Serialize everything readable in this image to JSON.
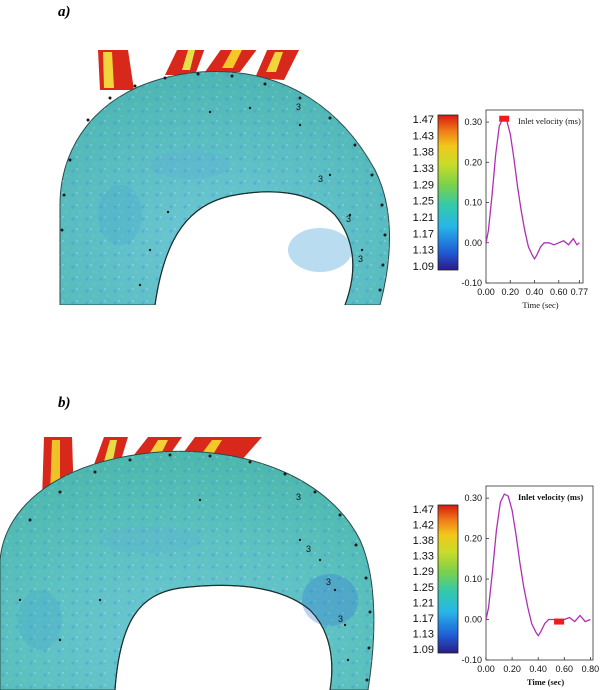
{
  "panels": [
    {
      "letter": "a)",
      "colorbar_labels": [
        "1.47",
        "1.43",
        "1.38",
        "1.33",
        "1.29",
        "1.25",
        "1.21",
        "1.17",
        "1.13",
        "1.09"
      ],
      "contour_label": "3",
      "chart": {
        "title": "Inlet velocity (ms)",
        "xlabel": "Time (sec)",
        "yticks": [
          "0.30",
          "0.20",
          "0.10",
          "0.00",
          "-0.10"
        ],
        "xticks": [
          "0.00",
          "0.20",
          "0.40",
          "0.60",
          "0.77"
        ],
        "marker_time": 0.15,
        "title_bold": false
      }
    },
    {
      "letter": "b)",
      "colorbar_labels": [
        "1.47",
        "1.42",
        "1.38",
        "1.33",
        "1.29",
        "1.25",
        "1.21",
        "1.17",
        "1.13",
        "1.09"
      ],
      "contour_label": "3",
      "chart": {
        "title": "Inlet velocity (ms)",
        "xlabel": "Time (sec)",
        "yticks": [
          "0.30",
          "0.20",
          "0.10",
          "0.00",
          "-0.10"
        ],
        "xticks": [
          "0.00",
          "0.20",
          "0.40",
          "0.60",
          "0.80"
        ],
        "marker_time": 0.56,
        "title_bold": true
      }
    }
  ],
  "chart_data": [
    {
      "type": "line",
      "title": "Inlet velocity (ms)",
      "xlabel": "Time (sec)",
      "ylabel": "",
      "xlim": [
        0,
        0.8
      ],
      "ylim": [
        -0.1,
        0.33
      ],
      "series": [
        {
          "x": [
            0.0,
            0.02,
            0.05,
            0.08,
            0.11,
            0.14,
            0.17,
            0.2,
            0.23,
            0.26,
            0.29,
            0.32,
            0.35,
            0.38,
            0.4,
            0.42,
            0.45,
            0.48,
            0.52,
            0.56,
            0.6,
            0.64,
            0.68,
            0.72,
            0.75,
            0.77
          ],
          "values": [
            0.0,
            0.03,
            0.12,
            0.22,
            0.29,
            0.31,
            0.305,
            0.27,
            0.21,
            0.14,
            0.08,
            0.03,
            -0.01,
            -0.03,
            -0.04,
            -0.03,
            -0.01,
            0.0,
            0.0,
            -0.005,
            0.0,
            0.005,
            -0.005,
            0.01,
            -0.005,
            0.0
          ]
        }
      ]
    },
    {
      "type": "line",
      "title": "Inlet velocity (ms)",
      "xlabel": "Time (sec)",
      "ylabel": "",
      "xlim": [
        0,
        0.82
      ],
      "ylim": [
        -0.1,
        0.33
      ],
      "series": [
        {
          "x": [
            0.0,
            0.02,
            0.05,
            0.08,
            0.11,
            0.14,
            0.17,
            0.2,
            0.23,
            0.26,
            0.29,
            0.32,
            0.35,
            0.38,
            0.4,
            0.42,
            0.45,
            0.48,
            0.52,
            0.56,
            0.6,
            0.64,
            0.68,
            0.72,
            0.76,
            0.8
          ],
          "values": [
            0.0,
            0.03,
            0.12,
            0.22,
            0.29,
            0.31,
            0.305,
            0.27,
            0.21,
            0.14,
            0.08,
            0.03,
            -0.01,
            -0.03,
            -0.04,
            -0.03,
            -0.01,
            0.0,
            0.0,
            -0.005,
            0.0,
            0.005,
            -0.005,
            0.01,
            -0.005,
            0.0
          ]
        }
      ]
    }
  ]
}
